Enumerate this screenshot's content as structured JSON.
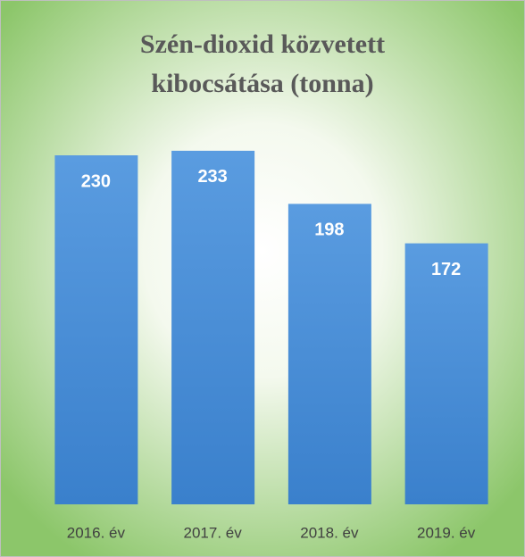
{
  "chart_data": {
    "type": "bar",
    "title": "Szén-dioxid közvetett kibocsátása (tonna)",
    "categories": [
      "2016. év",
      "2017. év",
      "2018. év",
      "2019. év"
    ],
    "values": [
      230,
      233,
      198,
      172
    ],
    "color": "#4a8fd8",
    "ylim": [
      0,
      250
    ]
  }
}
